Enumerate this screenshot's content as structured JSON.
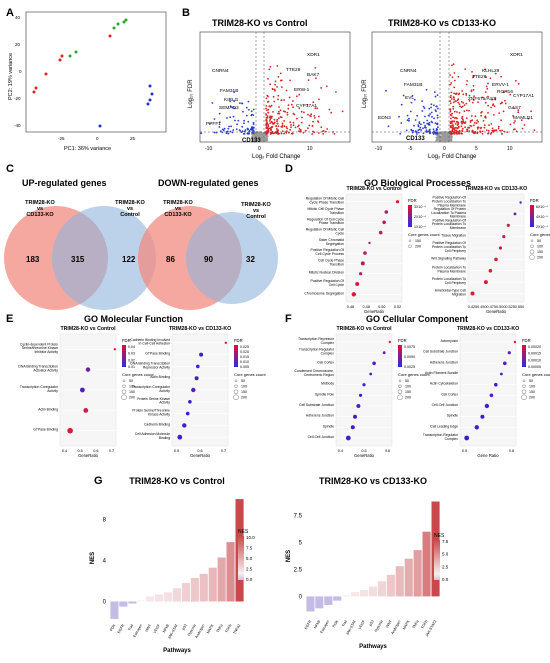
{
  "panel_labels": {
    "A": "A",
    "B": "B",
    "C": "C",
    "D": "D",
    "E": "E",
    "F": "F",
    "G": "G"
  },
  "pca": {
    "xlabel": "PC1: 36% variance",
    "ylabel": "PC2: 19% variance",
    "xticks": [
      "-25",
      "0",
      "25"
    ],
    "yticks": [
      "40",
      "20",
      "0",
      "-20",
      "-40"
    ],
    "colors": {
      "green": "#22aa22",
      "red": "#dd2222",
      "blue": "#2233cc"
    }
  },
  "volcano_left": {
    "title": "TRIM28-KO vs Control",
    "xlabel": "Log₂ Fold Change",
    "ylabel": "Log₁₀ FDR",
    "xticks": [
      "-10",
      "0",
      "10"
    ],
    "gene_labels": [
      "XDR1",
      "CNRN4",
      "TTE28",
      "BAK7",
      "FAM31B",
      "KIRLG",
      "SEMAD3",
      "ERW-1",
      "CYP17A1",
      "PPFF1",
      "CD133"
    ]
  },
  "volcano_right": {
    "title": "TRIM28-KO vs CD133-KO",
    "xlabel": "Log₂ Fold Change",
    "ylabel": "Log₁₀ FDR",
    "xticks": [
      "-10",
      "-5",
      "0",
      "5",
      "10"
    ],
    "gene_labels": [
      "XDR1",
      "CNRN4",
      "KLHL29",
      "TTE28",
      "ERVV-1",
      "FAM31B",
      "ROH16",
      "EVL",
      "ZNF675/AS3",
      "CYP17A1",
      "GAS7",
      "EDN3",
      "MAMLD1",
      "CD133"
    ]
  },
  "venn_up": {
    "title": "UP-regulated genes",
    "left_label": "TRIM28-KO\nvs\nCD133-KO",
    "right_label": "TRIM28-KO\nvs\nControl",
    "left_only": "183",
    "overlap": "315",
    "right_only": "122"
  },
  "venn_down": {
    "title": "DOWN-regulated genes",
    "left_label": "TRIM28-KO\nvs\nCD133-KO",
    "right_label": "TRIM28-KO\nvs\nControl",
    "left_only": "86",
    "overlap": "90",
    "right_only": "32"
  },
  "go_bp": {
    "title": "GO Biological Processes",
    "left": {
      "title": "TRIM28-KO vs Control",
      "xlabel": "GeneRatio",
      "xticks": [
        "0.46",
        "0.48",
        "0.50",
        "0.52"
      ],
      "terms": [
        "Regulation Of Mitotic Cell Cycle Phase Transition",
        "Mitotic Cell Cycle Phase Transition",
        "Regulation Of Cell Cycle Phase Transition",
        "Regulation Of Mitotic Cell Cycle",
        "Sister Chromatid Segregation",
        "Positive Regulation Of Cell Cycle Process",
        "Cell Cycle Phase Transition",
        "Mitotic Nuclear Division",
        "Positive Regulation Of Cell Cycle",
        "Chromosome Segregation"
      ],
      "legend_fdr": "FDR",
      "fdr_ticks": [
        "3X10⁻⁴",
        "2X10⁻⁴",
        "1X10⁻⁴"
      ],
      "legend_count": "Core genes count",
      "count_ticks": [
        "150",
        "200"
      ]
    },
    "right": {
      "title": "TRIM28-KO vs CD133-KO",
      "xlabel": "GeneRatio",
      "xticks": [
        "0.425",
        "0.450",
        "0.475",
        "0.500",
        "0.525",
        "0.550"
      ],
      "terms": [
        "Positive Regulation Of Protein Localization To Plasma Membrane",
        "Regulation Of Protein Localization To Plasma Membrane",
        "Positive Regulation Of Protein Localization To Membrane",
        "Tissue Migration",
        "Positive Regulation Of Protein Localization To Cell Periphery",
        "Wnt Signaling Pathway",
        "Protein Localization To Plasma Membrane",
        "Protein Localization To Cell Periphery",
        "Ameboidal-Type Cell Migration"
      ],
      "legend_fdr": "FDR",
      "fdr_ticks": [
        "6X10⁻⁴",
        "4X10⁻⁴",
        "2X10⁻⁴"
      ],
      "legend_count": "Core genes count",
      "count_ticks": [
        "50",
        "100",
        "150",
        "200"
      ]
    }
  },
  "go_mf": {
    "title": "GO Molecular Function",
    "left": {
      "title": "TRIM28-KO vs Control",
      "xlabel": "GeneRatio",
      "xticks": [
        "0.4",
        "0.5",
        "0.6",
        "0.7"
      ],
      "terms": [
        "Cyclin-dependent Protein Serine/threonine Kinase Inhibitor Activity",
        "DNA Binding Transcription Activator Activity",
        "Transcription Coregulator Activity",
        "Actin Binding",
        "GTPase Binding"
      ],
      "legend_fdr": "FDR",
      "fdr_ticks": [
        "0.04",
        "0.03",
        "0.02",
        "0.01"
      ],
      "legend_count": "Core genes count",
      "count_ticks": [
        "50",
        "100",
        "150",
        "200"
      ]
    },
    "right": {
      "title": "TRIM28-KO vs CD133-KO",
      "xlabel": "GeneRatio",
      "xticks": [
        "0.5",
        "0.6",
        "0.7"
      ],
      "terms": [
        "Cadherin Binding Involved In Cell-Cell Adhesion",
        "GTPase Binding",
        "DNA Binding Transcription Repressor Activity",
        "Actin Binding",
        "Transcription Coregulator Activity",
        "Protein Serine Kinase Activity",
        "Protein Serine/Threonine Kinase Activity",
        "Cadherin Binding",
        "Cell Adhesion Molecule Binding"
      ],
      "legend_fdr": "FDR",
      "fdr_ticks": [
        "0.025",
        "0.020",
        "0.015",
        "0.010",
        "0.005"
      ],
      "legend_count": "Core genes count",
      "count_ticks": [
        "50",
        "100",
        "150",
        "200"
      ]
    }
  },
  "go_cc": {
    "title": "GO Cellular Component",
    "left": {
      "title": "TRIM28-KO vs Control",
      "xlabel": "GeneRatio",
      "xticks": [
        "0.4",
        "0.5",
        "0.6"
      ],
      "terms": [
        "Transcription Repressor Complex",
        "Transcription Regulator Complex",
        "Cell Cortex",
        "Condensed Chromosome, Centromeric Region",
        "Midbody",
        "Spindle Pole",
        "Cell Substrate Junction",
        "Adherens Junction",
        "Spindle",
        "Cell-Cell Junction"
      ],
      "legend_fdr": "FDR",
      "fdr_ticks": [
        "0.0075",
        "0.0050",
        "0.0025"
      ],
      "legend_count": "Core genes count",
      "count_ticks": [
        "50",
        "100",
        "150",
        "200"
      ]
    },
    "right": {
      "title": "TRIM28-KO vs CD133-KO",
      "xlabel": "Gene Ratio",
      "xticks": [
        "0.5",
        "0.6"
      ],
      "terms": [
        "Actomyosin",
        "Cell Substrate Junction",
        "Adherens Junction",
        "Actin Filament Bundle",
        "Actin Cytoskeleton",
        "Cell Cortex",
        "Cell-Cell Junction",
        "Spindle",
        "Cell Leading Edge",
        "Transcription Regulator Complex"
      ],
      "legend_fdr": "FDR",
      "fdr_ticks": [
        "0.00020",
        "0.00015",
        "0.00010",
        "0.00005"
      ],
      "legend_count": "Core genes count",
      "count_ticks": [
        "50",
        "100",
        "150",
        "200"
      ]
    }
  },
  "chart_data": [
    {
      "type": "bar",
      "title": "TRIM28-KO vs Control",
      "xlabel": "Pathways",
      "ylabel": "NES",
      "categories": [
        "PDK",
        "EGFR",
        "Trail",
        "Estrogen",
        "WNT",
        "VEGF",
        "NFkB",
        "JAK-STAT",
        "p53",
        "Hypoxia",
        "Androgen",
        "MAPK",
        "TNFa",
        "TGFb",
        "TNFa2"
      ],
      "values": [
        -1.7,
        -0.5,
        -0.2,
        0.1,
        0.5,
        0.7,
        0.9,
        1.3,
        1.8,
        2.3,
        2.7,
        3.3,
        4.3,
        5.8,
        10.0
      ],
      "ylim": [
        -2,
        10.5
      ],
      "yticks": [
        "0",
        "4",
        "8"
      ],
      "legend": {
        "title": "NES",
        "ticks": [
          "10.0",
          "7.5",
          "5.0",
          "2.5",
          "0.0"
        ]
      }
    },
    {
      "type": "bar",
      "title": "TRIM28-KO vs CD133-KO",
      "xlabel": "Pathways",
      "ylabel": "NES",
      "categories": [
        "EGFR",
        "NFkB",
        "Estrogen",
        "PI3K",
        "Trail",
        "JAK-STAT",
        "VEGF",
        "p53",
        "Hypoxia",
        "WNT",
        "Androgen",
        "MAPK",
        "TNFa",
        "TGFb",
        "JAK-STAT2"
      ],
      "values": [
        -1.4,
        -1.1,
        -0.8,
        -0.4,
        0.1,
        0.4,
        0.6,
        0.9,
        1.4,
        2.0,
        2.8,
        3.5,
        4.3,
        6.0,
        8.8
      ],
      "ylim": [
        -2,
        9.5
      ],
      "yticks": [
        "0",
        "2.5",
        "5",
        "7.5"
      ],
      "legend": {
        "title": "NES",
        "ticks": [
          "7.5",
          "5.0",
          "2.5",
          "0.0"
        ]
      }
    }
  ]
}
